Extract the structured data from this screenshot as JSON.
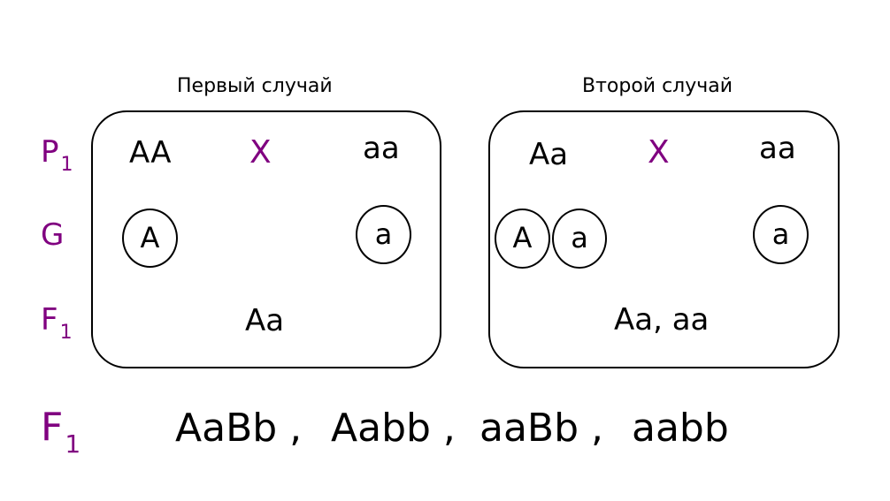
{
  "row_labels": {
    "p": {
      "base": "P",
      "sub": "1"
    },
    "g": {
      "base": "G"
    },
    "f": {
      "base": "F",
      "sub": "1"
    }
  },
  "accent_color": "#800080",
  "cases": [
    {
      "title": "Первый случай",
      "parent1": "AA",
      "cross": "X",
      "parent2": "aa",
      "gametes_left": [
        "A"
      ],
      "gametes_right": [
        "a"
      ],
      "offspring": "Aa"
    },
    {
      "title": "Второй случай",
      "parent1": "Aa",
      "cross": "X",
      "parent2": "aa",
      "gametes_left": [
        "A",
        "a"
      ],
      "gametes_right": [
        "a"
      ],
      "offspring": "Aa, aa"
    }
  ],
  "summary": {
    "label": {
      "base": "F",
      "sub": "1"
    },
    "items": [
      "AaBb ,",
      "Aabb ,",
      "aaBb ,",
      "aabb"
    ]
  }
}
